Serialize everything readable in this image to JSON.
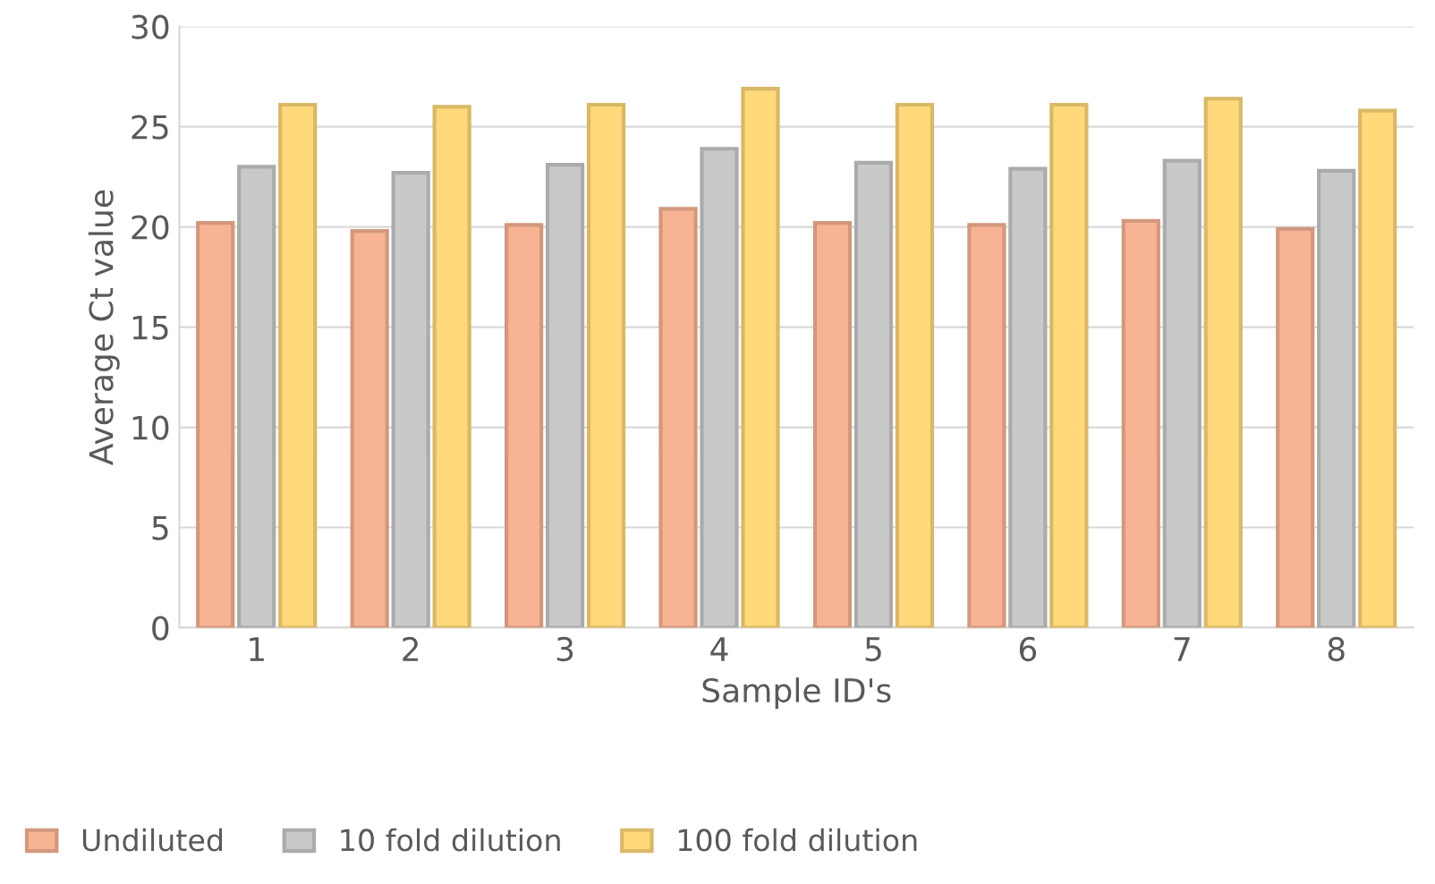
{
  "chart_data": {
    "type": "bar",
    "xlabel": "Sample ID's",
    "ylabel": "Average Ct value",
    "categories": [
      "1",
      "2",
      "3",
      "4",
      "5",
      "6",
      "7",
      "8"
    ],
    "series": [
      {
        "name": "Undiluted",
        "color": "#f7b394",
        "values": [
          20.2,
          19.8,
          20.1,
          20.9,
          20.2,
          20.1,
          20.3,
          19.9
        ]
      },
      {
        "name": "10 fold dilution",
        "color": "#c9c9c9",
        "values": [
          23.0,
          22.7,
          23.1,
          23.9,
          23.2,
          22.9,
          23.3,
          22.8
        ]
      },
      {
        "name": "100 fold dilution",
        "color": "#ffd97a",
        "values": [
          26.1,
          26.0,
          26.1,
          26.9,
          26.1,
          26.1,
          26.4,
          25.8
        ]
      }
    ],
    "ylim": [
      0,
      30
    ],
    "yticks": [
      0,
      5,
      10,
      15,
      20,
      25,
      30
    ],
    "grid": "y",
    "legend": "bottom left"
  }
}
